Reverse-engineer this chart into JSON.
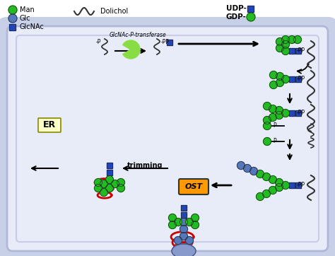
{
  "bg_color": "#ffffff",
  "cell_outer_color": "#c8d0e8",
  "cell_inner_color": "#e8ecf8",
  "man_color": "#22bb22",
  "glc_color": "#5577bb",
  "glcnac_color": "#2244bb",
  "dol_color": "#333333",
  "arr_color": "#000000",
  "ost_color": "#ff9900",
  "prot_color": "#cc0000",
  "enzyme_color": "#88dd44",
  "nucleus_color": "#8899cc",
  "er_bg": "#ffffc8",
  "labels": {
    "Man": "Man",
    "Glc": "Glc",
    "GlcNAc": "GlcNAc",
    "Dolichol": "Dolichol",
    "UDP": "UDP-",
    "GDP": "GDP-",
    "transferase": "GlcNAc-P-transferase",
    "trimming": "trimming",
    "OST": "OST",
    "ER": "ER",
    "mP": "-P",
    "mPP": "-PP"
  }
}
